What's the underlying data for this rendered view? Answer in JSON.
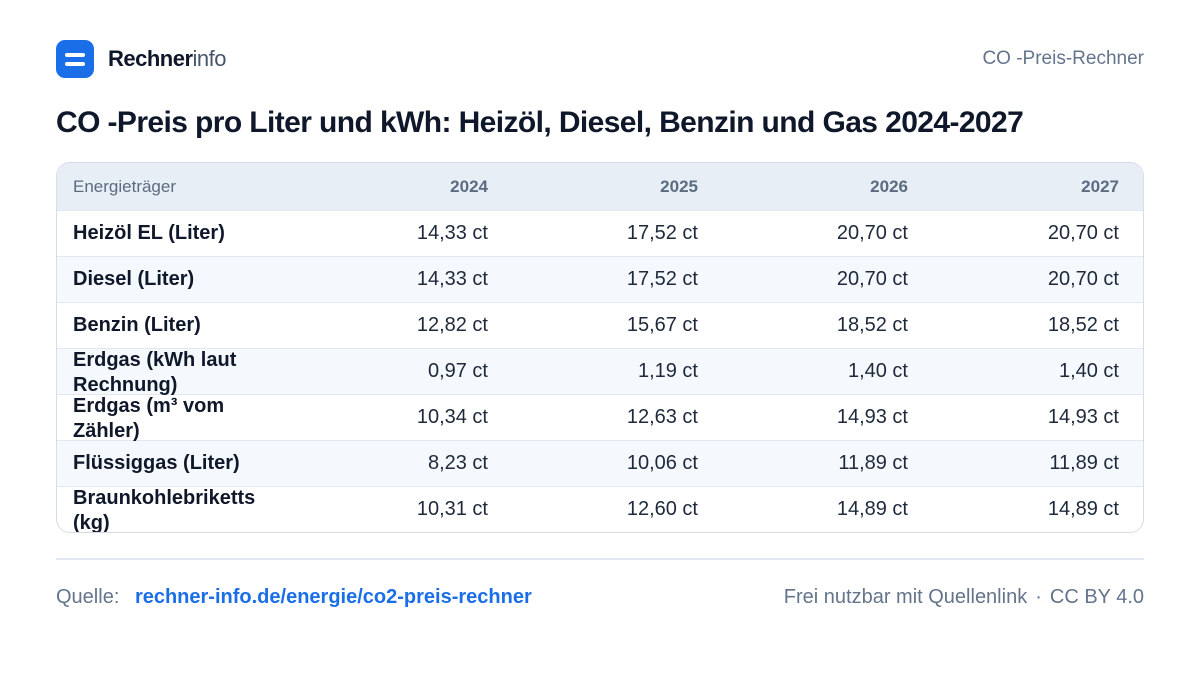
{
  "brand": {
    "name_bold": "Rechner",
    "name_light": "info"
  },
  "header": {
    "right_label": "CO -Preis-Rechner"
  },
  "title": "CO -Preis pro Liter und kWh: Heizöl, Diesel, Benzin und Gas 2024-2027",
  "table": {
    "columns": [
      "Energieträger",
      "2024",
      "2025",
      "2026",
      "2027"
    ],
    "rows": [
      {
        "name": "Heizöl EL (Liter)",
        "values": [
          "14,33 ct",
          "17,52 ct",
          "20,70 ct",
          "20,70 ct"
        ]
      },
      {
        "name": "Diesel (Liter)",
        "values": [
          "14,33 ct",
          "17,52 ct",
          "20,70 ct",
          "20,70 ct"
        ]
      },
      {
        "name": "Benzin (Liter)",
        "values": [
          "12,82 ct",
          "15,67 ct",
          "18,52 ct",
          "18,52 ct"
        ]
      },
      {
        "name": "Erdgas (kWh laut Rechnung)",
        "values": [
          "0,97 ct",
          "1,19 ct",
          "1,40 ct",
          "1,40 ct"
        ]
      },
      {
        "name": "Erdgas (m³ vom Zähler)",
        "values": [
          "10,34 ct",
          "12,63 ct",
          "14,93 ct",
          "14,93 ct"
        ]
      },
      {
        "name": "Flüssiggas (Liter)",
        "values": [
          "8,23 ct",
          "10,06 ct",
          "11,89 ct",
          "11,89 ct"
        ]
      },
      {
        "name": "Braunkohlebriketts (kg)",
        "values": [
          "10,31 ct",
          "12,60 ct",
          "14,89 ct",
          "14,89 ct"
        ]
      }
    ]
  },
  "footer": {
    "source_label": "Quelle:",
    "source_link": "rechner-info.de/energie/co2-preis-rechner",
    "license_text": "Frei nutzbar mit Quellenlink",
    "separator": "·",
    "license": "CC BY 4.0"
  },
  "colors": {
    "accent": "#1a6fe8",
    "header_bg": "#e8eef6",
    "alt_row_bg": "#f5f8fc"
  },
  "icons": {
    "logo": "menu-lines-icon"
  }
}
